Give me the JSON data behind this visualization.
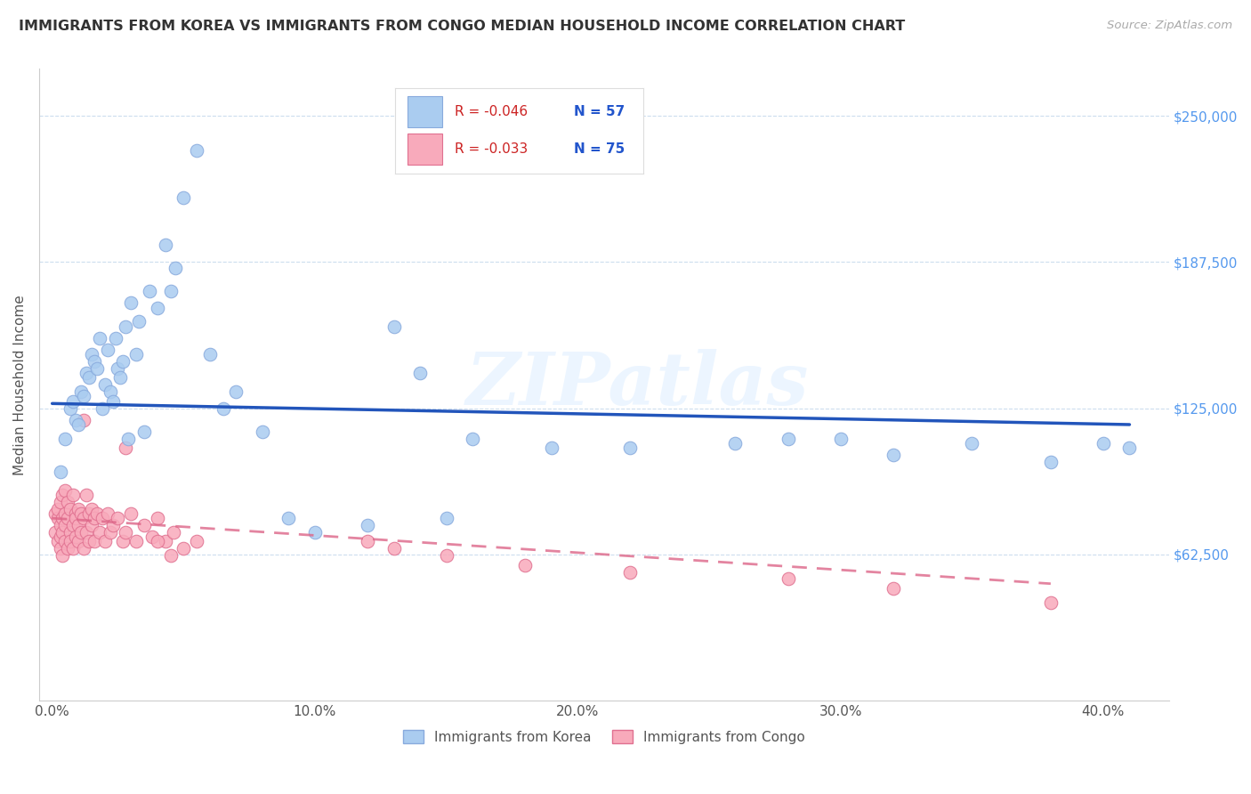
{
  "title": "IMMIGRANTS FROM KOREA VS IMMIGRANTS FROM CONGO MEDIAN HOUSEHOLD INCOME CORRELATION CHART",
  "source": "Source: ZipAtlas.com",
  "xlabel_ticks": [
    "0.0%",
    "10.0%",
    "20.0%",
    "30.0%",
    "40.0%"
  ],
  "xlabel_tick_vals": [
    0.0,
    0.1,
    0.2,
    0.3,
    0.4
  ],
  "ylabel": "Median Household Income",
  "ytick_vals": [
    0,
    62500,
    125000,
    187500,
    250000
  ],
  "ytick_labels": [
    "",
    "$62,500",
    "$125,000",
    "$187,500",
    "$250,000"
  ],
  "xlim": [
    -0.005,
    0.425
  ],
  "ylim": [
    0,
    270000
  ],
  "korea_color": "#aaccf0",
  "korea_edge": "#88aadd",
  "congo_color": "#f8aabb",
  "congo_edge": "#e07090",
  "korea_line_color": "#2255bb",
  "congo_line_color": "#dd6688",
  "watermark": "ZIPatlas",
  "legend_R_korea": "R = -0.046",
  "legend_N_korea": "N = 57",
  "legend_R_congo": "R = -0.033",
  "legend_N_congo": "N = 75",
  "korea_scatter_x": [
    0.003,
    0.005,
    0.007,
    0.008,
    0.009,
    0.01,
    0.011,
    0.012,
    0.013,
    0.014,
    0.015,
    0.016,
    0.017,
    0.018,
    0.019,
    0.02,
    0.021,
    0.022,
    0.023,
    0.024,
    0.025,
    0.026,
    0.027,
    0.028,
    0.029,
    0.03,
    0.032,
    0.033,
    0.035,
    0.037,
    0.04,
    0.043,
    0.045,
    0.047,
    0.05,
    0.055,
    0.06,
    0.065,
    0.07,
    0.08,
    0.09,
    0.1,
    0.12,
    0.13,
    0.14,
    0.15,
    0.16,
    0.19,
    0.22,
    0.26,
    0.28,
    0.3,
    0.32,
    0.35,
    0.38,
    0.4,
    0.41
  ],
  "korea_scatter_y": [
    98000,
    112000,
    125000,
    128000,
    120000,
    118000,
    132000,
    130000,
    140000,
    138000,
    148000,
    145000,
    142000,
    155000,
    125000,
    135000,
    150000,
    132000,
    128000,
    155000,
    142000,
    138000,
    145000,
    160000,
    112000,
    170000,
    148000,
    162000,
    115000,
    175000,
    168000,
    195000,
    175000,
    185000,
    215000,
    235000,
    148000,
    125000,
    132000,
    115000,
    78000,
    72000,
    75000,
    160000,
    140000,
    78000,
    112000,
    108000,
    108000,
    110000,
    112000,
    112000,
    105000,
    110000,
    102000,
    110000,
    108000
  ],
  "congo_scatter_x": [
    0.001,
    0.001,
    0.002,
    0.002,
    0.002,
    0.003,
    0.003,
    0.003,
    0.003,
    0.004,
    0.004,
    0.004,
    0.004,
    0.005,
    0.005,
    0.005,
    0.005,
    0.006,
    0.006,
    0.006,
    0.007,
    0.007,
    0.007,
    0.008,
    0.008,
    0.008,
    0.009,
    0.009,
    0.009,
    0.01,
    0.01,
    0.01,
    0.011,
    0.011,
    0.012,
    0.012,
    0.013,
    0.013,
    0.014,
    0.014,
    0.015,
    0.015,
    0.016,
    0.016,
    0.017,
    0.018,
    0.019,
    0.02,
    0.021,
    0.022,
    0.023,
    0.025,
    0.027,
    0.028,
    0.03,
    0.032,
    0.035,
    0.038,
    0.04,
    0.043,
    0.046,
    0.05,
    0.055,
    0.012,
    0.028,
    0.04,
    0.045,
    0.12,
    0.13,
    0.15,
    0.18,
    0.22,
    0.28,
    0.32,
    0.38
  ],
  "congo_scatter_y": [
    80000,
    72000,
    78000,
    68000,
    82000,
    75000,
    65000,
    85000,
    70000,
    88000,
    62000,
    78000,
    72000,
    90000,
    68000,
    80000,
    75000,
    85000,
    65000,
    78000,
    72000,
    82000,
    68000,
    88000,
    75000,
    65000,
    80000,
    70000,
    78000,
    82000,
    68000,
    75000,
    80000,
    72000,
    78000,
    65000,
    88000,
    72000,
    80000,
    68000,
    82000,
    75000,
    78000,
    68000,
    80000,
    72000,
    78000,
    68000,
    80000,
    72000,
    75000,
    78000,
    68000,
    72000,
    80000,
    68000,
    75000,
    70000,
    78000,
    68000,
    72000,
    65000,
    68000,
    120000,
    108000,
    68000,
    62000,
    68000,
    65000,
    62000,
    58000,
    55000,
    52000,
    48000,
    42000
  ],
  "korea_trend_x": [
    0.0,
    0.41
  ],
  "korea_trend_y": [
    127000,
    118000
  ],
  "congo_trend_x": [
    0.0,
    0.38
  ],
  "congo_trend_y": [
    78000,
    50000
  ]
}
